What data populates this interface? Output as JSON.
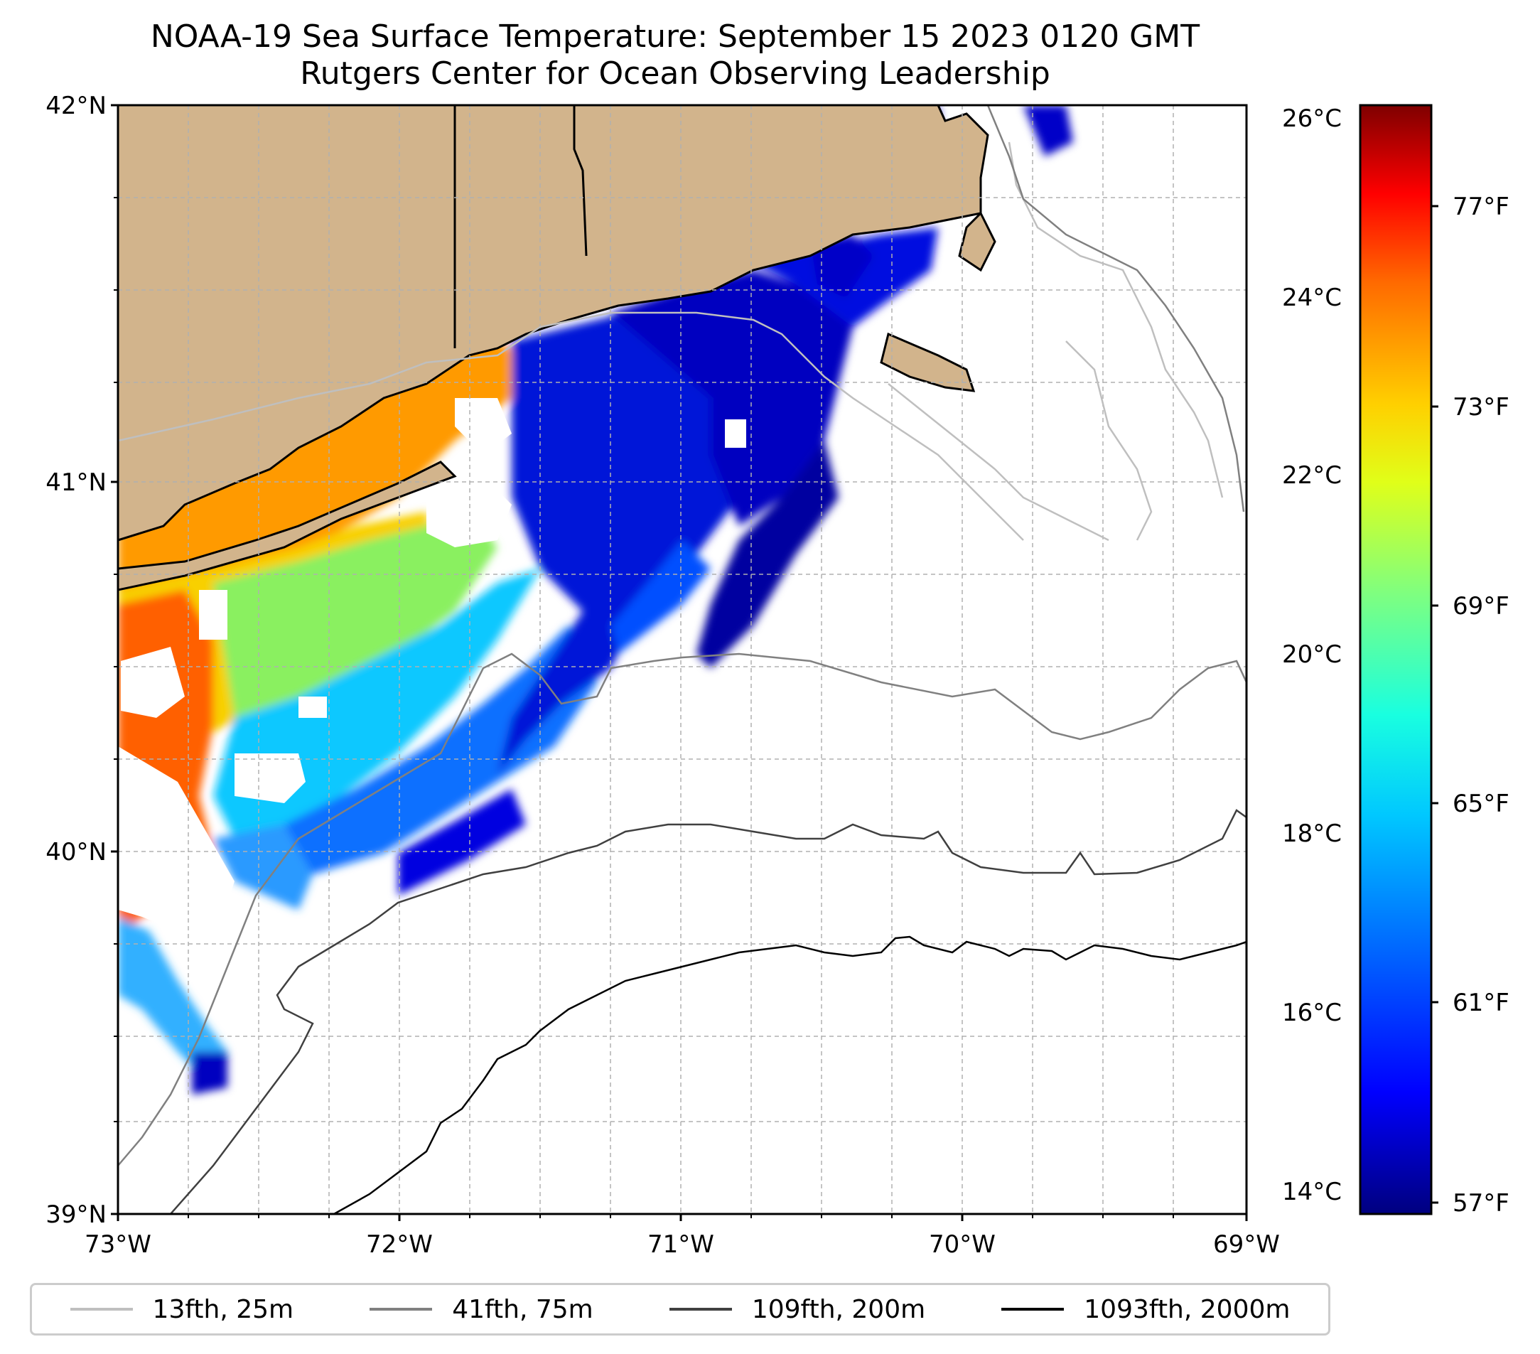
{
  "title": "NOAA-19 Sea Surface Temperature: September 15 2023 0120 GMT",
  "subtitle": "Rutgers Center for Ocean Observing Leadership",
  "map": {
    "lat_labels": [
      "42°N",
      "41°N",
      "40°N",
      "39°N"
    ],
    "lon_labels": [
      "73°W",
      "72°W",
      "71°W",
      "70°W",
      "69°W"
    ],
    "lat_range": [
      39,
      42
    ],
    "lon_range": [
      -73,
      -69
    ],
    "land_color": "#d2b48c"
  },
  "colorbar": {
    "celsius_labels": [
      "26°C",
      "24°C",
      "22°C",
      "20°C",
      "18°C",
      "16°C",
      "14°C"
    ],
    "fahrenheit_labels": [
      "77°F",
      "73°F",
      "69°F",
      "65°F",
      "61°F",
      "57°F"
    ],
    "range_c": [
      13.7,
      26.2
    ],
    "colormap": "jet",
    "colors": [
      "#00007f",
      "#0000ff",
      "#007fff",
      "#00ffff",
      "#7fff7f",
      "#ffff00",
      "#ff7f00",
      "#ff0000",
      "#7f0000"
    ]
  },
  "legend": [
    {
      "label": "13fth, 25m",
      "color": "#bfbfbf"
    },
    {
      "label": "41fth, 75m",
      "color": "#808080"
    },
    {
      "label": "109fth, 200m",
      "color": "#404040"
    },
    {
      "label": "1093fth, 2000m",
      "color": "#000000"
    }
  ]
}
